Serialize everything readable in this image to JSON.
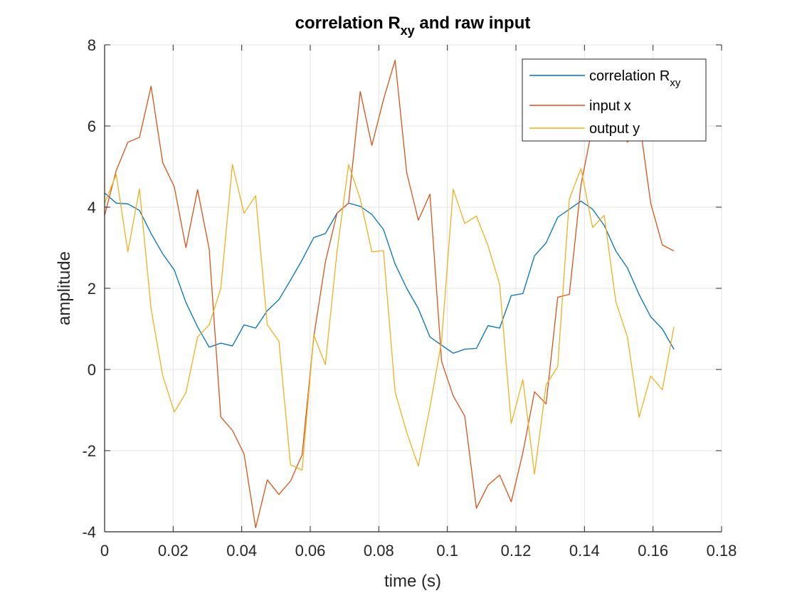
{
  "chart_data": {
    "type": "line",
    "title": {
      "main": "correlation R",
      "sub": "xy",
      "rest": " and raw input"
    },
    "xlabel": "time (s)",
    "ylabel": "amplitude",
    "xlim": [
      0,
      0.18
    ],
    "ylim": [
      -4,
      8
    ],
    "xticks": [
      "0",
      "0.02",
      "0.04",
      "0.06",
      "0.08",
      "0.1",
      "0.12",
      "0.14",
      "0.16",
      "0.18"
    ],
    "yticks": [
      "-4",
      "-2",
      "0",
      "2",
      "4",
      "6",
      "8"
    ],
    "grid": true,
    "legend_position": "top-right",
    "x": [
      0,
      0.00339,
      0.00678,
      0.01017,
      0.01356,
      0.01695,
      0.02034,
      0.02373,
      0.02712,
      0.03051,
      0.0339,
      0.03729,
      0.04068,
      0.04407,
      0.04746,
      0.05085,
      0.05424,
      0.05763,
      0.06102,
      0.06441,
      0.0678,
      0.07119,
      0.07458,
      0.07797,
      0.08136,
      0.08475,
      0.08814,
      0.09153,
      0.09492,
      0.09831,
      0.1017,
      0.10508,
      0.10847,
      0.11186,
      0.11525,
      0.11864,
      0.12203,
      0.12542,
      0.12881,
      0.1322,
      0.13559,
      0.13898,
      0.14237,
      0.14576,
      0.14915,
      0.15254,
      0.15593,
      0.15932,
      0.16271,
      0.1661
    ],
    "series": [
      {
        "name": "correlation R",
        "name_sub": "xy",
        "color": "#0072BD",
        "values": [
          4.35,
          4.1,
          4.08,
          3.92,
          3.35,
          2.85,
          2.45,
          1.65,
          1.05,
          0.55,
          0.65,
          0.58,
          1.1,
          1.02,
          1.45,
          1.72,
          2.2,
          2.7,
          3.25,
          3.35,
          3.85,
          4.1,
          4.02,
          3.82,
          3.45,
          2.6,
          2.0,
          1.5,
          0.8,
          0.6,
          0.4,
          0.5,
          0.52,
          1.08,
          1.02,
          1.82,
          1.87,
          2.8,
          3.12,
          3.75,
          3.95,
          4.15,
          3.95,
          3.55,
          2.92,
          2.5,
          1.85,
          1.3,
          1.0,
          0.5
        ]
      },
      {
        "name": "input x",
        "color": "#D95319",
        "values": [
          3.8,
          4.9,
          5.6,
          5.72,
          6.98,
          5.1,
          4.5,
          3.0,
          4.43,
          2.97,
          -1.17,
          -1.5,
          -2.08,
          -3.9,
          -2.72,
          -3.08,
          -2.75,
          -2.1,
          0.8,
          2.65,
          3.85,
          4.1,
          6.85,
          5.52,
          6.65,
          7.62,
          4.85,
          3.68,
          4.32,
          0.2,
          -0.65,
          -1.15,
          -3.42,
          -2.85,
          -2.6,
          -3.26,
          -2.05,
          -0.55,
          -0.85,
          1.78,
          1.85,
          4.55,
          6.0,
          6.1,
          6.2,
          5.6,
          6.2,
          4.1,
          3.07,
          2.92
        ]
      },
      {
        "name": "output y",
        "color": "#EDB120",
        "values": [
          4.1,
          4.8,
          2.9,
          4.45,
          1.5,
          -0.15,
          -1.05,
          -0.57,
          0.8,
          1.1,
          2.0,
          5.05,
          3.85,
          4.28,
          1.1,
          0.7,
          -2.35,
          -2.48,
          0.85,
          0.12,
          2.9,
          5.05,
          4.2,
          2.9,
          2.93,
          -0.55,
          -1.55,
          -2.38,
          -0.93,
          0.7,
          4.44,
          3.6,
          3.78,
          3.05,
          2.1,
          -1.33,
          -0.25,
          -2.58,
          -0.38,
          0.07,
          4.2,
          4.95,
          3.5,
          3.8,
          1.67,
          0.8,
          -1.18,
          -0.16,
          -0.5,
          1.05
        ]
      }
    ]
  }
}
